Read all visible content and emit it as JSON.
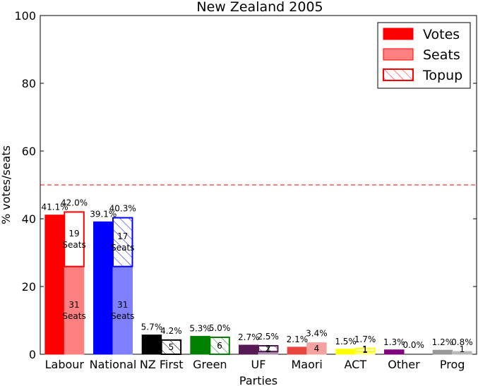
{
  "chart_data": {
    "type": "bar",
    "title": "New Zealand 2005",
    "xlabel": "Parties",
    "ylabel": "% votes/seats",
    "ylim": [
      0,
      100
    ],
    "yticks": [
      "0",
      "20",
      "40",
      "60",
      "80",
      "100"
    ],
    "majority_line": 50,
    "legend_position": "top-right",
    "legend": [
      {
        "key": "votes",
        "label": "Votes"
      },
      {
        "key": "seats",
        "label": "Seats"
      },
      {
        "key": "topup",
        "label": "Topup"
      }
    ],
    "categories": [
      "Labour",
      "National",
      "NZ First",
      "Green",
      "UF",
      "Maori",
      "ACT",
      "Other",
      "Prog"
    ],
    "colors": [
      "#ff0000",
      "#0000ff",
      "#000000",
      "#008000",
      "#551a55",
      "#e8473f",
      "#ffff00",
      "#800080",
      "#999999"
    ],
    "series": [
      {
        "name": "Votes",
        "values": [
          41.1,
          39.1,
          5.7,
          5.3,
          2.7,
          2.1,
          1.5,
          1.3,
          1.2
        ]
      },
      {
        "name": "Seats",
        "values": [
          42.0,
          40.3,
          4.2,
          5.0,
          2.5,
          3.4,
          1.7,
          0.0,
          0.8
        ]
      }
    ],
    "electorate_seat_pct": [
      25.9,
      25.9,
      0,
      0,
      0.8,
      3.4,
      0.8,
      0,
      0.8
    ],
    "vote_labels": [
      "41.1%",
      "39.1%",
      "5.7%",
      "5.3%",
      "2.7%",
      "2.1%",
      "1.5%",
      "1.3%",
      "1.2%"
    ],
    "seat_labels": [
      "42.0%",
      "40.3%",
      "4.2%",
      "5.0%",
      "2.5%",
      "3.4%",
      "1.7%",
      "0.0%",
      "0.8%"
    ],
    "topup_seats": [
      "19\nSeats",
      "17\nSeats",
      "5",
      "6",
      "2",
      "",
      "1",
      "",
      ""
    ],
    "electorate_seats": [
      "31\nSeats",
      "31\nSeats",
      "",
      "",
      "1",
      "4",
      "1",
      "",
      "1"
    ]
  }
}
